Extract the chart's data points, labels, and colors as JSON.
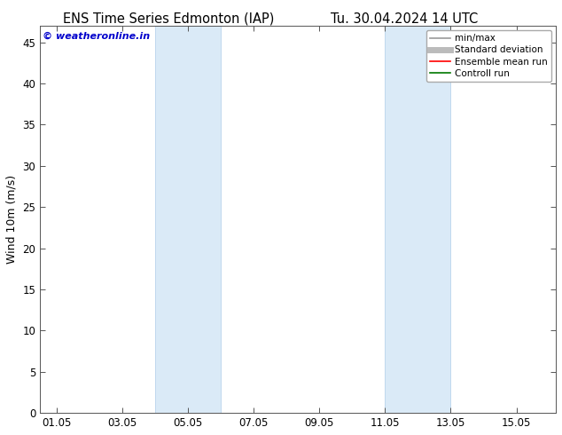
{
  "title_left": "ENS Time Series Edmonton (IAP)",
  "title_right": "Tu. 30.04.2024 14 UTC",
  "ylabel": "Wind 10m (m/s)",
  "watermark": "© weatheronline.in",
  "watermark_color": "#0000cc",
  "background_color": "#ffffff",
  "plot_bg_color": "#ffffff",
  "shaded_regions": [
    {
      "x_start": 4.0,
      "x_end": 6.0,
      "color": "#daeaf7"
    },
    {
      "x_start": 11.0,
      "x_end": 13.0,
      "color": "#daeaf7"
    }
  ],
  "shaded_vlines": [
    4.0,
    6.0,
    11.0,
    13.0
  ],
  "x_ticks": [
    1,
    3,
    5,
    7,
    9,
    11,
    13,
    15
  ],
  "x_tick_labels": [
    "01.05",
    "03.05",
    "05.05",
    "07.05",
    "09.05",
    "11.05",
    "13.05",
    "15.05"
  ],
  "xlim": [
    0.5,
    16.2
  ],
  "ylim": [
    0,
    47
  ],
  "y_ticks": [
    0,
    5,
    10,
    15,
    20,
    25,
    30,
    35,
    40,
    45
  ],
  "legend_entries": [
    {
      "label": "min/max",
      "color": "#999999",
      "lw": 1.2
    },
    {
      "label": "Standard deviation",
      "color": "#bbbbbb",
      "lw": 5
    },
    {
      "label": "Ensemble mean run",
      "color": "#ff0000",
      "lw": 1.2
    },
    {
      "label": "Controll run",
      "color": "#007700",
      "lw": 1.2
    }
  ],
  "title_fontsize": 10.5,
  "axis_label_fontsize": 9,
  "tick_fontsize": 8.5,
  "watermark_fontsize": 8
}
